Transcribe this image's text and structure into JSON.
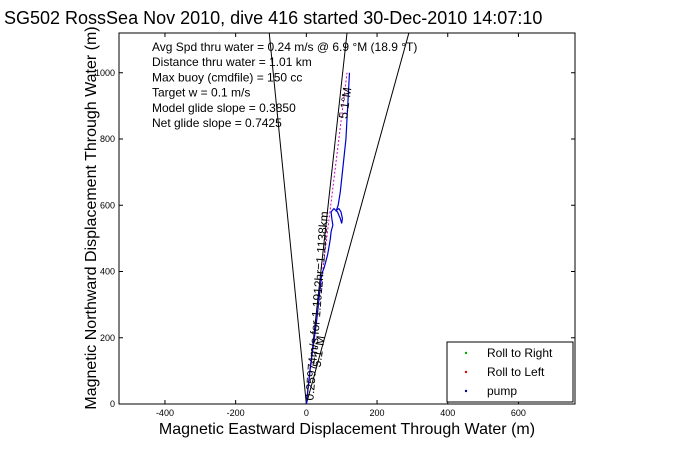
{
  "chart_data": {
    "type": "line",
    "title": "SG502 RossSea Nov 2010, dive 416 started 30-Dec-2010 14:07:10",
    "xlabel": "Magnetic Eastward Displacement Through Water (m)",
    "ylabel": "Magnetic Northward Displacement Through Water (m)",
    "xlim": [
      -530,
      760
    ],
    "ylim": [
      0,
      1120
    ],
    "xticks": [
      -400,
      -200,
      0,
      200,
      400,
      600
    ],
    "yticks": [
      0,
      200,
      400,
      600,
      800,
      1000
    ],
    "grid": false,
    "legend_position": "bottom-right",
    "annotations": [
      "Avg Spd thru water =  0.24 m/s @   6.9  °M (18.9 °T)",
      "Distance thru water =  1.01 km",
      "Max buoy (cmdfile) = 150 cc",
      "Target w = 0.1 m/s",
      "Model glide slope = 0.3850",
      "Net glide slope = 0.7425"
    ],
    "rotated_labels": [
      {
        "text": "0.25974m/s for 1.1912hr=1.1138km",
        "x": 20,
        "y": 10,
        "angle": 85.5
      },
      {
        "text": "5.1°M",
        "x": 115,
        "y": 860,
        "angle": 82
      },
      {
        "text": "5.1°M",
        "x": 40,
        "y": 110,
        "angle": 82
      }
    ],
    "guide_lines": [
      {
        "x": [
          0,
          -105
        ],
        "y": [
          0,
          1120
        ]
      },
      {
        "x": [
          0,
          290
        ],
        "y": [
          0,
          1120
        ]
      },
      {
        "x": [
          0,
          115
        ],
        "y": [
          0,
          1120
        ]
      }
    ],
    "series": [
      {
        "color": "#0000cc",
        "x": [
          0,
          3,
          6,
          10,
          15,
          20,
          25,
          30,
          34,
          38,
          42,
          46,
          50,
          55,
          60,
          65,
          68,
          70,
          75,
          72,
          70,
          78,
          88,
          96,
          100,
          102,
          98,
          92,
          85,
          90,
          96,
          100,
          104,
          108,
          112,
          114,
          116,
          118,
          120,
          122
        ],
        "y": [
          0,
          30,
          60,
          100,
          140,
          180,
          220,
          260,
          300,
          340,
          380,
          400,
          410,
          430,
          450,
          480,
          500,
          520,
          540,
          560,
          580,
          590,
          580,
          560,
          545,
          560,
          580,
          590,
          585,
          600,
          640,
          680,
          720,
          760,
          800,
          840,
          880,
          920,
          960,
          1000
        ]
      }
    ],
    "legend": [
      {
        "label": "Roll to Right",
        "color": "#00aa00"
      },
      {
        "label": "Roll to Left",
        "color": "#dd0000"
      },
      {
        "label": "pump",
        "color": "#000080"
      }
    ]
  }
}
